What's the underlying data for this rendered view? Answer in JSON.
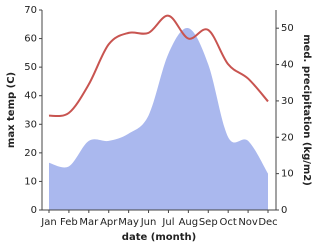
{
  "chart_data": {
    "type": "line",
    "x_label": "date (month)",
    "y_label": "max temp (C)",
    "y2_label": "med. precipitation (kg/m2)",
    "categories": [
      "Jan",
      "Feb",
      "Mar",
      "Apr",
      "May",
      "Jun",
      "Jul",
      "Aug",
      "Sep",
      "Oct",
      "Nov",
      "Dec"
    ],
    "series": [
      {
        "name": "med. precipitation",
        "kind": "area",
        "axis": "y2",
        "color": "#aab8ee",
        "values": [
          13,
          12,
          19,
          19,
          21,
          26,
          43,
          50,
          40,
          20,
          19,
          10
        ]
      },
      {
        "name": "max temp",
        "kind": "line",
        "color": "#c85450",
        "values": [
          33,
          34,
          44,
          58,
          62,
          62,
          68,
          60,
          63,
          51,
          46,
          38
        ]
      }
    ],
    "ylim": [
      0,
      70
    ],
    "yticks": [
      0,
      10,
      20,
      30,
      40,
      50,
      60,
      70
    ],
    "y2lim": [
      0,
      55
    ],
    "y2ticks": [
      0,
      10,
      20,
      30,
      40,
      50
    ]
  }
}
